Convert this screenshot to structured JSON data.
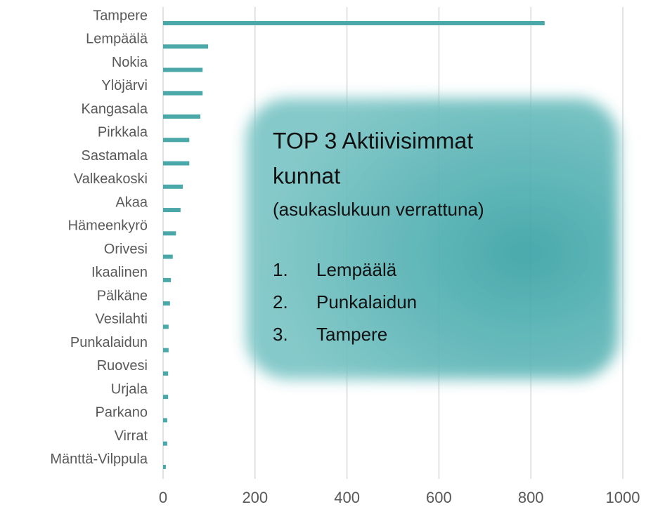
{
  "chart_data": {
    "type": "bar",
    "orientation": "horizontal",
    "color": "#4aa8a8",
    "categories": [
      "Tampere",
      "Lempäälä",
      "Nokia",
      "Ylöjärvi",
      "Kangasala",
      "Pirkkala",
      "Sastamala",
      "Valkeakoski",
      "Akaa",
      "Hämeenkyrö",
      "Orivesi",
      "Ikaalinen",
      "Pälkäne",
      "Vesilahti",
      "Punkalaidun",
      "Ruovesi",
      "Urjala",
      "Parkano",
      "Virrat",
      "Mänttä-Vilppula"
    ],
    "values": [
      830,
      98,
      86,
      86,
      81,
      57,
      57,
      43,
      38,
      28,
      21,
      17,
      15,
      12,
      12,
      11,
      11,
      9,
      9,
      6
    ],
    "xlim": [
      0,
      1000
    ],
    "xticks": [
      0,
      200,
      400,
      600,
      800,
      1000
    ],
    "grid": true,
    "annotation": {
      "title": "TOP 3 Aktiivisimmat",
      "title2": "kunnat",
      "subtitle": "(asukaslukuun verrattuna)",
      "items": [
        "Lempäälä",
        "Punkalaidun",
        "Tampere"
      ],
      "numbers": [
        "1.",
        "2.",
        "3."
      ]
    }
  }
}
